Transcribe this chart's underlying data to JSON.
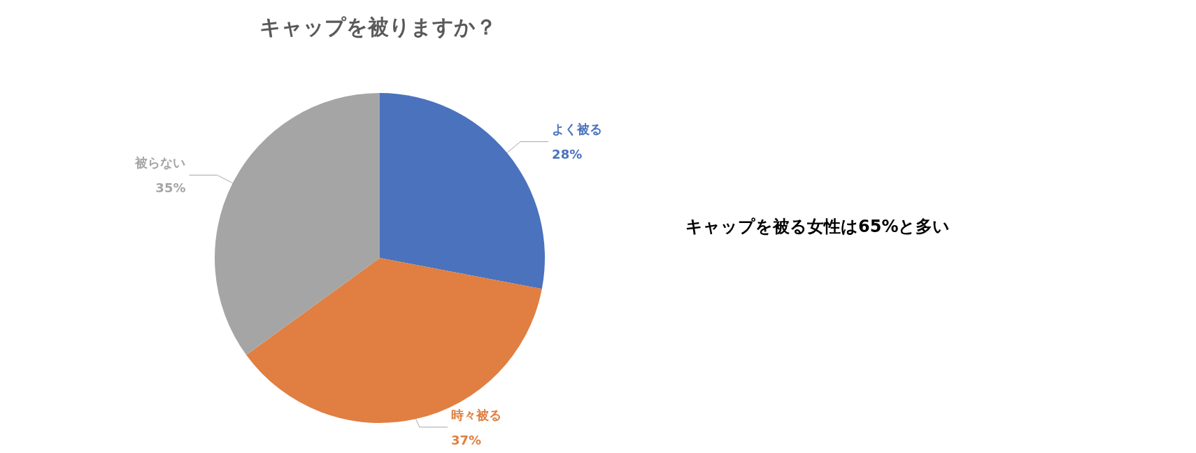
{
  "chart_data": {
    "type": "pie",
    "title": "キャップを被りますか？",
    "categories": [
      "よく被る",
      "時々被る",
      "被らない"
    ],
    "values": [
      28,
      37,
      35
    ],
    "value_labels": [
      "28%",
      "37%",
      "35%"
    ],
    "colors": [
      "#4a72bd",
      "#e07f41",
      "#a5a5a5"
    ],
    "legend": false,
    "annotations": [
      "キャップを被る女性は65%と多い"
    ]
  }
}
